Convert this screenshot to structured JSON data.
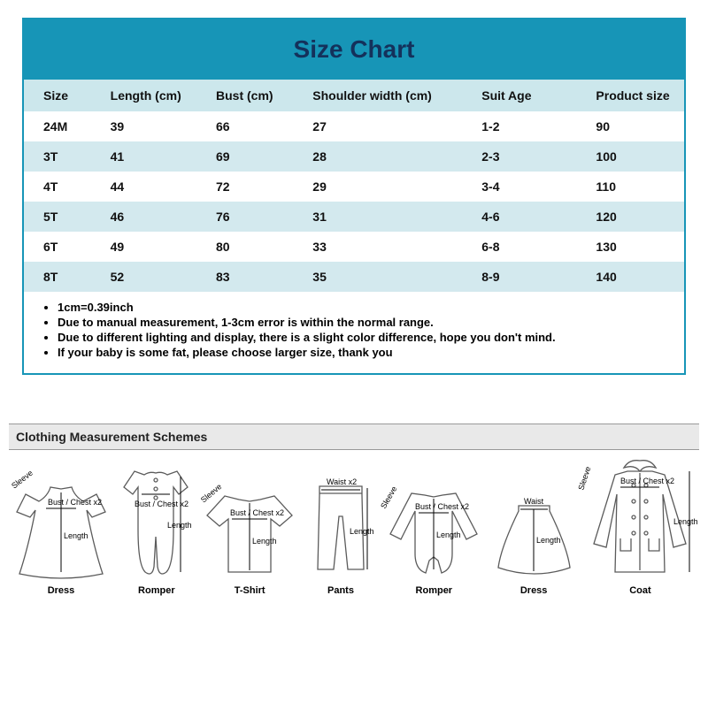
{
  "chart": {
    "title": "Size Chart",
    "title_bg": "#1795b7",
    "title_color": "#14315b",
    "border_color": "#1795b7",
    "header_bg": "#cce7ec",
    "alt_row_bg": "#d3e9ee",
    "columns": [
      "Size",
      "Length (cm)",
      "Bust (cm)",
      "Shoulder width (cm)",
      "Suit Age",
      "Product size"
    ],
    "rows": [
      [
        "24M",
        "39",
        "66",
        "27",
        "1-2",
        "90"
      ],
      [
        "3T",
        "41",
        "69",
        "28",
        "2-3",
        "100"
      ],
      [
        "4T",
        "44",
        "72",
        "29",
        "3-4",
        "110"
      ],
      [
        "5T",
        "46",
        "76",
        "31",
        "4-6",
        "120"
      ],
      [
        "6T",
        "49",
        "80",
        "33",
        "6-8",
        "130"
      ],
      [
        "8T",
        "52",
        "83",
        "35",
        "8-9",
        "140"
      ]
    ],
    "notes": [
      "1cm=0.39inch",
      "Due to manual measurement, 1-3cm error is within the normal range.",
      "Due to different lighting and display, there is a slight color difference, hope you don't mind.",
      "If your baby is some fat, please choose larger size, thank you"
    ]
  },
  "schemes": {
    "heading": "Clothing Measurement Schemes",
    "labels": {
      "dress1": "Dress",
      "romper": "Romper",
      "tshirt": "T-Shirt",
      "pants": "Pants",
      "romper2": "Romper",
      "dress2": "Dress",
      "coat": "Coat"
    },
    "ann": {
      "sleeve": "Sleeve",
      "bust": "Bust / Chest x2",
      "length": "Length",
      "waist": "Waist x2",
      "waist1": "Waist"
    }
  }
}
